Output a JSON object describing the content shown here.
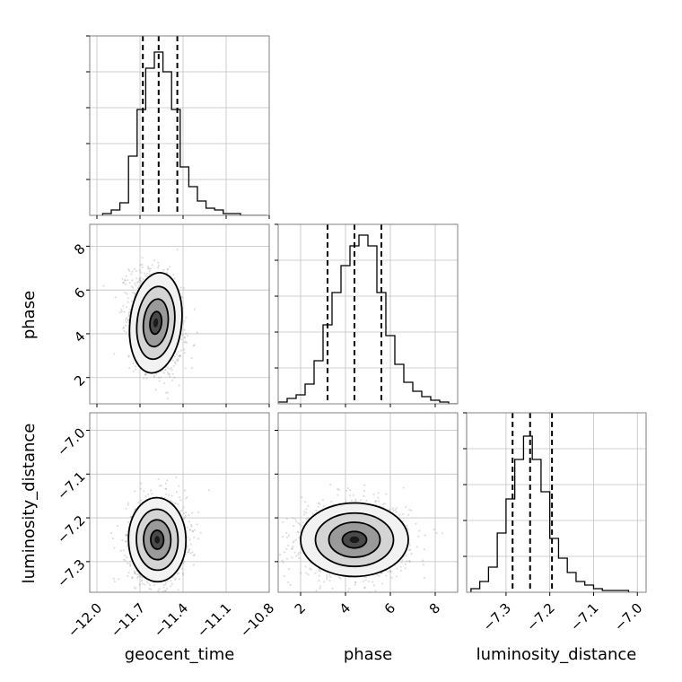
{
  "figure": {
    "type": "corner-plot",
    "panel_frame_color": "#808080",
    "grid_color": "#c0c0c0",
    "hist_color": "#000000",
    "scatter_color": "#7f7f7f",
    "contour_color": "#000000"
  },
  "chart_data": [
    {
      "type": "histogram",
      "parameter": "geocent_time",
      "xlim": [
        -12.05,
        -10.8
      ],
      "ylim": [
        0,
        1
      ],
      "bin_edges": [
        -11.96,
        -11.9,
        -11.84,
        -11.78,
        -11.72,
        -11.66,
        -11.6,
        -11.54,
        -11.48,
        -11.42,
        -11.36,
        -11.3,
        -11.24,
        -11.18,
        -11.12,
        -11.06,
        -11.0,
        -10.94,
        -10.88,
        -10.82
      ],
      "counts": [
        0.01,
        0.03,
        0.07,
        0.33,
        0.59,
        0.82,
        0.91,
        0.8,
        0.59,
        0.27,
        0.16,
        0.08,
        0.04,
        0.03,
        0.01,
        0.01,
        0.0,
        0.0,
        0.0
      ],
      "quantiles": [
        -11.68,
        -11.57,
        -11.44
      ],
      "xticks": [
        -12.0,
        -11.7,
        -11.4,
        -11.1,
        -10.8
      ],
      "xtick_labels": [
        "−12.0",
        "−11.7",
        "−11.4",
        "−11.1",
        "−10.8"
      ]
    },
    {
      "type": "scatter-contour",
      "x_parameter": "geocent_time",
      "y_parameter": "phase",
      "xlim": [
        -12.05,
        -10.8
      ],
      "ylim": [
        0.8,
        9.0
      ],
      "center": [
        -11.59,
        4.5
      ],
      "spread": [
        0.09,
        1.15
      ],
      "correlation": -0.25,
      "yticks": [
        2,
        4,
        6,
        8
      ],
      "ytick_labels": [
        "2",
        "4",
        "6",
        "8"
      ]
    },
    {
      "type": "histogram",
      "parameter": "phase",
      "xlim": [
        1.0,
        9.0
      ],
      "ylim": [
        0,
        1
      ],
      "bin_edges": [
        1.0,
        1.4,
        1.8,
        2.2,
        2.6,
        3.0,
        3.4,
        3.8,
        4.2,
        4.6,
        5.0,
        5.4,
        5.8,
        6.2,
        6.6,
        7.0,
        7.4,
        7.8,
        8.2,
        8.6,
        9.0
      ],
      "counts": [
        0.01,
        0.03,
        0.05,
        0.11,
        0.24,
        0.44,
        0.62,
        0.77,
        0.88,
        0.94,
        0.88,
        0.62,
        0.38,
        0.22,
        0.12,
        0.07,
        0.04,
        0.02,
        0.01,
        0.0
      ],
      "quantiles": [
        3.2,
        4.4,
        5.6
      ],
      "xticks": [
        2,
        4,
        6,
        8
      ],
      "xtick_labels": [
        "2",
        "4",
        "6",
        "8"
      ]
    },
    {
      "type": "scatter-contour",
      "x_parameter": "geocent_time",
      "y_parameter": "luminosity_distance",
      "xlim": [
        -12.05,
        -10.8
      ],
      "ylim": [
        -7.37,
        -6.96
      ],
      "center": [
        -11.58,
        -7.25
      ],
      "spread": [
        0.1,
        0.048
      ],
      "correlation": 0.05,
      "yticks": [
        -7.0,
        -7.1,
        -7.2,
        -7.3
      ],
      "ytick_labels": [
        "−7.0",
        "−7.1",
        "−7.2",
        "−7.3"
      ]
    },
    {
      "type": "scatter-contour",
      "x_parameter": "phase",
      "y_parameter": "luminosity_distance",
      "xlim": [
        1.0,
        9.0
      ],
      "ylim": [
        -7.37,
        -6.96
      ],
      "center": [
        4.4,
        -7.25
      ],
      "spread": [
        1.2,
        0.042
      ],
      "correlation": 0.0
    },
    {
      "type": "histogram",
      "parameter": "luminosity_distance",
      "xlim": [
        -7.39,
        -6.98
      ],
      "ylim": [
        0,
        1
      ],
      "bin_edges": [
        -7.38,
        -7.36,
        -7.34,
        -7.32,
        -7.3,
        -7.28,
        -7.26,
        -7.24,
        -7.22,
        -7.2,
        -7.18,
        -7.16,
        -7.14,
        -7.12,
        -7.1,
        -7.08,
        -7.06,
        -7.04,
        -7.02,
        -7.0
      ],
      "counts": [
        0.02,
        0.06,
        0.14,
        0.33,
        0.52,
        0.74,
        0.87,
        0.74,
        0.56,
        0.3,
        0.19,
        0.11,
        0.06,
        0.04,
        0.02,
        0.01,
        0.01,
        0.01,
        0.0
      ],
      "quantiles": [
        -7.285,
        -7.245,
        -7.195
      ],
      "xticks": [
        -7.3,
        -7.2,
        -7.1,
        -7.0
      ],
      "xtick_labels": [
        "−7.3",
        "−7.2",
        "−7.1",
        "−7.0"
      ]
    }
  ],
  "labels": {
    "x_geocent": "geocent_time",
    "x_phase": "phase",
    "x_lumdist": "luminosity_distance",
    "y_phase": "phase",
    "y_lumdist": "luminosity_distance"
  }
}
